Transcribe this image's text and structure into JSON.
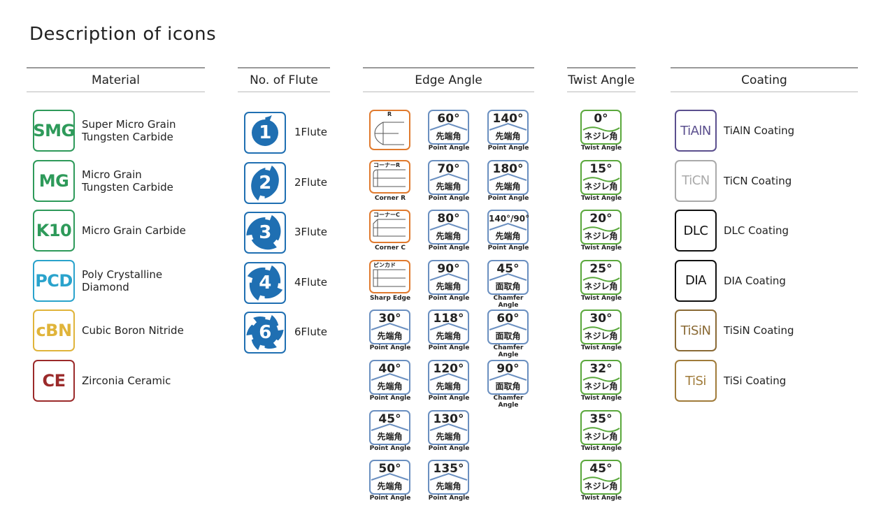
{
  "title": "Description of icons",
  "material": {
    "header": "Material",
    "items": [
      {
        "code": "SMG",
        "label": [
          "Super Micro Grain",
          "Tungsten Carbide"
        ],
        "color": "#2e9a5a"
      },
      {
        "code": "MG",
        "label": [
          "Micro Grain",
          "Tungsten Carbide"
        ],
        "color": "#2e9a5a"
      },
      {
        "code": "K10",
        "label": [
          "Micro Grain Carbide"
        ],
        "color": "#2e9a5a"
      },
      {
        "code": "PCD",
        "label": [
          "Poly Crystalline",
          "Diamond"
        ],
        "color": "#2aa3cc"
      },
      {
        "code": "cBN",
        "label": [
          "Cubic Boron Nitride"
        ],
        "color": "#e0b43a"
      },
      {
        "code": "CE",
        "label": [
          "Zirconia Ceramic"
        ],
        "color": "#9b2a2a"
      }
    ]
  },
  "flute": {
    "header": "No. of Flute",
    "color": "#1f6fb2",
    "items": [
      {
        "number": "1",
        "label": "1Flute"
      },
      {
        "number": "2",
        "label": "2Flute"
      },
      {
        "number": "3",
        "label": "3Flute"
      },
      {
        "number": "4",
        "label": "4Flute"
      },
      {
        "number": "6",
        "label": "6Flute"
      }
    ]
  },
  "edge_angle": {
    "header": "Edge Angle",
    "color": "#6a8fc0",
    "special_color": "#e07a2e",
    "columns": [
      [
        {
          "top": "R"
        },
        {
          "top": "コーナーR",
          "caption": "Corner R"
        },
        {
          "top": "コーナーC",
          "caption": "Corner C"
        },
        {
          "top": "ピンカド",
          "caption": "Sharp Edge"
        },
        {
          "angle": "30°",
          "kind": "先端角",
          "caption": "Point Angle"
        },
        {
          "angle": "40°",
          "kind": "先端角",
          "caption": "Point Angle"
        },
        {
          "angle": "45°",
          "kind": "先端角",
          "caption": "Point Angle"
        },
        {
          "angle": "50°",
          "kind": "先端角",
          "caption": "Point Angle"
        }
      ],
      [
        {
          "angle": "60°",
          "kind": "先端角",
          "caption": "Point Angle"
        },
        {
          "angle": "70°",
          "kind": "先端角",
          "caption": "Point Angle"
        },
        {
          "angle": "80°",
          "kind": "先端角",
          "caption": "Point Angle"
        },
        {
          "angle": "90°",
          "kind": "先端角",
          "caption": "Point Angle"
        },
        {
          "angle": "118°",
          "kind": "先端角",
          "caption": "Point Angle"
        },
        {
          "angle": "120°",
          "kind": "先端角",
          "caption": "Point Angle"
        },
        {
          "angle": "130°",
          "kind": "先端角",
          "caption": "Point Angle"
        },
        {
          "angle": "135°",
          "kind": "先端角",
          "caption": "Point Angle"
        }
      ],
      [
        {
          "angle": "140°",
          "kind": "先端角",
          "caption": "Point Angle"
        },
        {
          "angle": "180°",
          "kind": "先端角",
          "caption": "Point Angle"
        },
        {
          "angle": "140°/90°",
          "kind": "先端角",
          "caption": "Point Angle"
        },
        {
          "angle": "45°",
          "kind": "面取角",
          "caption": "Chamfer Angle"
        },
        {
          "angle": "60°",
          "kind": "面取角",
          "caption": "Chamfer Angle"
        },
        {
          "angle": "90°",
          "kind": "面取角",
          "caption": "Chamfer Angle"
        }
      ]
    ]
  },
  "twist_angle": {
    "header": "Twist Angle",
    "color": "#5aa83c",
    "items": [
      {
        "angle": "0°",
        "kind": "ネジレ角",
        "caption": "Twist Angle"
      },
      {
        "angle": "15°",
        "kind": "ネジレ角",
        "caption": "Twist Angle"
      },
      {
        "angle": "20°",
        "kind": "ネジレ角",
        "caption": "Twist Angle"
      },
      {
        "angle": "25°",
        "kind": "ネジレ角",
        "caption": "Twist Angle"
      },
      {
        "angle": "30°",
        "kind": "ネジレ角",
        "caption": "Twist Angle"
      },
      {
        "angle": "32°",
        "kind": "ネジレ角",
        "caption": "Twist Angle"
      },
      {
        "angle": "35°",
        "kind": "ネジレ角",
        "caption": "Twist Angle"
      },
      {
        "angle": "45°",
        "kind": "ネジレ角",
        "caption": "Twist Angle"
      }
    ]
  },
  "coating": {
    "header": "Coating",
    "items": [
      {
        "code": "TiAlN",
        "label": "TiAlN Coating",
        "color": "#5b4f8e"
      },
      {
        "code": "TiCN",
        "label": "TiCN Coating",
        "color": "#aaaaaa"
      },
      {
        "code": "DLC",
        "label": "DLC Coating",
        "color": "#111111"
      },
      {
        "code": "DIA",
        "label": "DIA Coating",
        "color": "#111111"
      },
      {
        "code": "TiSiN",
        "label": "TiSiN Coating",
        "color": "#8a6a35"
      },
      {
        "code": "TiSi",
        "label": "TiSi Coating",
        "color": "#a07b3a"
      }
    ]
  }
}
